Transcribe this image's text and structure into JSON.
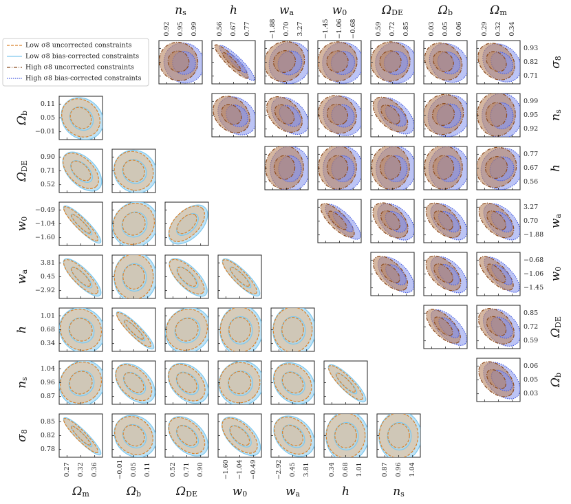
{
  "chart_data": {
    "type": "scatter",
    "kind": "corner-plot-confidence-ellipses",
    "legend": {
      "placement": "top-left",
      "entries": [
        {
          "label": "Low σ8 uncorrected constraints",
          "color": "#d9822b",
          "style": "dashed"
        },
        {
          "label": "Low σ8 bias-corrected constraints",
          "color": "#7ec8ee",
          "style": "solid"
        },
        {
          "label": "High σ8 uncorrected constraints",
          "color": "#8b4a1e",
          "style": "dashdot"
        },
        {
          "label": "High σ8 bias-corrected constraints",
          "color": "#4a5fe0",
          "style": "dotted"
        }
      ]
    },
    "colors": {
      "low_uncorrected_fill": "#e9b98a",
      "low_uncorrected_line": "#d9822b",
      "low_corrected_fill": "#a9d8f2",
      "low_corrected_line": "#7ec8ee",
      "high_uncorrected_fill": "#b98560",
      "high_uncorrected_line": "#8b4a1e",
      "high_corrected_fill": "#8593ec",
      "high_corrected_line": "#4a5fe0"
    },
    "lower_triangle": {
      "series": "low σ8",
      "parameters": [
        "Ωm",
        "Ωb",
        "ΩDE",
        "w0",
        "wa",
        "h",
        "ns",
        "σ8"
      ],
      "row_order": [
        "Ωb",
        "ΩDE",
        "w0",
        "wa",
        "h",
        "ns",
        "σ8"
      ],
      "column_order": [
        "Ωm",
        "Ωb",
        "ΩDE",
        "w0",
        "wa",
        "h",
        "ns"
      ],
      "ticks": {
        "Ωm": [
          "0.27",
          "0.32",
          "0.36"
        ],
        "Ωb": [
          "−0.01",
          "0.05",
          "0.11"
        ],
        "ΩDE": [
          "0.52",
          "0.71",
          "0.90"
        ],
        "w0": [
          "−1.60",
          "−1.04",
          "−0.49"
        ],
        "wa": [
          "−2.92",
          "0.45",
          "3.81"
        ],
        "h": [
          "0.34",
          "0.68",
          "1.01"
        ],
        "ns": [
          "0.87",
          "0.96",
          "1.04"
        ],
        "σ8": [
          "0.78",
          "0.82",
          "0.85"
        ]
      },
      "row_tick_labels": {
        "Ωb": [
          "0.11",
          "0.05",
          "−0.01"
        ],
        "ΩDE": [
          "0.90",
          "0.71",
          "0.52"
        ],
        "w0": [
          "−0.49",
          "−1.04",
          "−1.60"
        ],
        "wa": [
          "3.81",
          "0.45",
          "−2.92"
        ],
        "h": [
          "1.01",
          "0.68",
          "0.34"
        ],
        "ns": [
          "1.04",
          "0.96",
          "0.87"
        ],
        "σ8": [
          "0.85",
          "0.82",
          "0.78"
        ]
      },
      "correlations": [
        [
          -0.3
        ],
        [
          -0.55,
          -0.25
        ],
        [
          -0.9,
          -0.1,
          0.55
        ],
        [
          -0.8,
          -0.05,
          -0.7,
          -0.85
        ],
        [
          0.1,
          -0.9,
          -0.1,
          0.05,
          -0.05
        ],
        [
          -0.1,
          -0.5,
          -0.45,
          -0.15,
          -0.35,
          -0.85
        ],
        [
          -0.92,
          -0.3,
          -0.5,
          -0.6,
          -0.4,
          0.05,
          -0.05
        ]
      ]
    },
    "upper_triangle": {
      "series": "high σ8",
      "column_order": [
        "ns",
        "h",
        "wa",
        "w0",
        "ΩDE",
        "Ωb",
        "Ωm"
      ],
      "row_order": [
        "σ8",
        "ns",
        "h",
        "wa",
        "w0",
        "ΩDE",
        "Ωb"
      ],
      "column_tick_labels": {
        "ns": [
          "0.92",
          "0.95",
          "0.99"
        ],
        "h": [
          "0.56",
          "0.67",
          "0.77"
        ],
        "wa": [
          "−1.88",
          "0.70",
          "3.27"
        ],
        "w0": [
          "−1.45",
          "−1.06",
          "−0.68"
        ],
        "ΩDE": [
          "0.59",
          "0.72",
          "0.85"
        ],
        "Ωb": [
          "0.03",
          "0.05",
          "0.06"
        ],
        "Ωm": [
          "0.29",
          "0.32",
          "0.34"
        ]
      },
      "row_tick_labels": {
        "σ8": [
          "0.93",
          "0.82",
          "0.71"
        ],
        "ns": [
          "0.99",
          "0.95",
          "0.92"
        ],
        "h": [
          "0.77",
          "0.67",
          "0.56"
        ],
        "wa": [
          "3.27",
          "0.70",
          "−1.88"
        ],
        "w0": [
          "−0.68",
          "−1.06",
          "−1.45"
        ],
        "ΩDE": [
          "0.85",
          "0.72",
          "0.59"
        ],
        "Ωb": [
          "0.06",
          "0.05",
          "0.03"
        ]
      },
      "correlations": [
        [
          -0.2,
          -0.9,
          -0.1,
          -0.15,
          -0.15,
          -0.3,
          -0.35
        ],
        [
          -0.35,
          -0.45,
          -0.25,
          -0.55,
          -0.1,
          -0.05
        ],
        [
          -0.05,
          -0.05,
          -0.05,
          -0.05,
          -0.1
        ],
        [
          -0.75,
          -0.5,
          -0.55,
          -0.55
        ],
        [
          -0.6,
          -0.55,
          -0.7
        ],
        [
          -0.65,
          -0.45
        ],
        [
          -0.5
        ]
      ]
    },
    "axis_labels": {
      "bottom": [
        "Ωm",
        "Ωb",
        "ΩDE",
        "w0",
        "wa",
        "h",
        "ns"
      ],
      "left": [
        "Ωb",
        "ΩDE",
        "w0",
        "wa",
        "h",
        "ns",
        "σ8"
      ],
      "top": [
        "ns",
        "h",
        "wa",
        "w0",
        "ΩDE",
        "Ωb",
        "Ωm"
      ],
      "right": [
        "σ8",
        "ns",
        "h",
        "wa",
        "w0",
        "ΩDE",
        "Ωb"
      ]
    }
  }
}
